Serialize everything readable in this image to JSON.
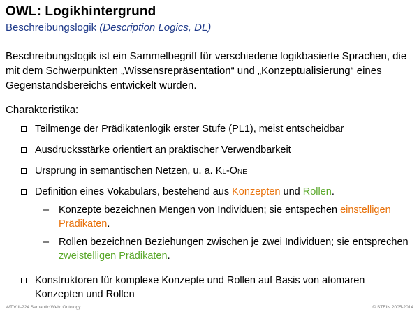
{
  "title": "OWL: Logikhintergrund",
  "subtitle": {
    "main": "Beschreibungslogik",
    "paren": "(Description Logics, DL)"
  },
  "intro": "Beschreibungslogik ist ein Sammelbegriff für verschiedene logikbasierte Sprachen, die mit dem Schwerpunkten „Wissensrepräsentation“ und „Konzeptualisierung“ eines Gegenstandsbereichs entwickelt wurden.",
  "characteristics_label": "Charakteristika:",
  "bullets": {
    "b1": "Teilmenge der Prädikatenlogik erster Stufe (PL1), meist entscheidbar",
    "b2": "Ausdrucksstärke orientiert an praktischer Verwendbarkeit",
    "b3_pre": "Ursprung in semantischen Netzen, u. a. ",
    "b3_sc": "Kl-One",
    "b4_pre": "Definition eines Vokabulars, bestehend aus ",
    "b4_konzepten": "Konzepten",
    "b4_und": " und ",
    "b4_rollen": "Rollen",
    "b4_end": ".",
    "d1_pre": "Konzepte bezeichnen Mengen von Individuen; sie entspechen ",
    "d1_hl": "einstelligen Prädikaten",
    "d1_end": ".",
    "d2_pre": "Rollen bezeichnen Beziehungen zwischen je zwei Individuen; sie entsprechen ",
    "d2_hl": "zweistelligen Prädikaten",
    "d2_end": ".",
    "b5": "Konstruktoren für komplexe Konzepte und Rollen auf Basis von atomaren Konzepten und Rollen"
  },
  "footer": {
    "left": "WT:VIII-224   Semantic Web: Ontology",
    "right": "© STEIN 2005-2014"
  },
  "colors": {
    "orange": "#e8710a",
    "green": "#5aa82a",
    "subtitle_blue": "#1f3a8a"
  }
}
